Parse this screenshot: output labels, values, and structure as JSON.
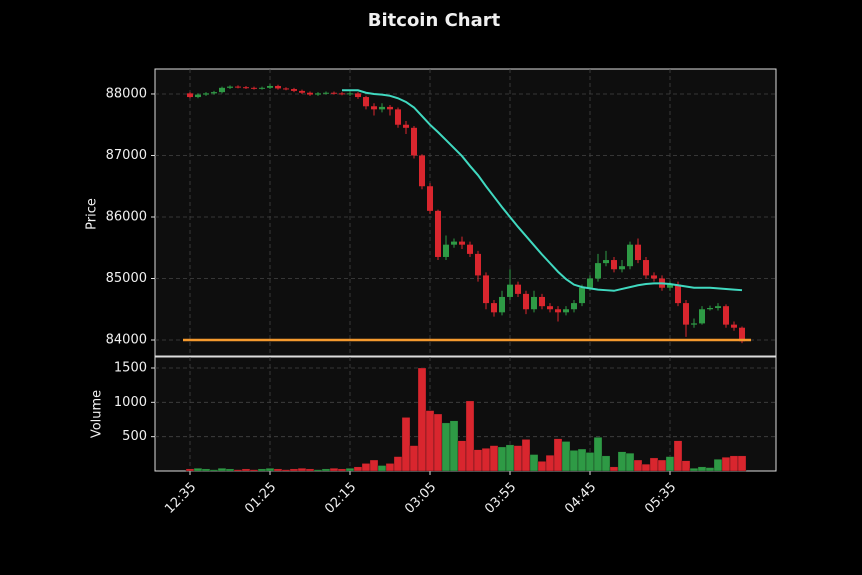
{
  "chart_data": {
    "type": "candlestick",
    "title": "Bitcoin Chart",
    "ylabel": "Price",
    "categories": [
      "12:35",
      null,
      null,
      null,
      null,
      null,
      null,
      null,
      null,
      null,
      "01:25",
      null,
      null,
      null,
      null,
      null,
      null,
      null,
      null,
      null,
      "02:15",
      null,
      null,
      null,
      null,
      null,
      null,
      null,
      null,
      null,
      "03:05",
      null,
      null,
      null,
      null,
      null,
      null,
      null,
      null,
      null,
      "03:55",
      null,
      null,
      null,
      null,
      null,
      null,
      null,
      null,
      null,
      "04:45",
      null,
      null,
      null,
      null,
      null,
      null,
      null,
      null,
      null,
      "05:35",
      null,
      null,
      null,
      null,
      null,
      null,
      null,
      null,
      null
    ],
    "open": [
      88010,
      87950,
      87990,
      88010,
      88030,
      88100,
      88120,
      88110,
      88100,
      88090,
      88100,
      88130,
      88090,
      88080,
      88050,
      88020,
      87990,
      88010,
      88020,
      88010,
      88000,
      88010,
      87950,
      87800,
      87750,
      87790,
      87750,
      87500,
      87450,
      87000,
      86500,
      86100,
      85350,
      85550,
      85600,
      85550,
      85400,
      85050,
      84600,
      84450,
      84700,
      84900,
      84750,
      84500,
      84700,
      84550,
      84500,
      84450,
      84500,
      84600,
      84850,
      85000,
      85250,
      85300,
      85150,
      85200,
      85550,
      85300,
      85050,
      85000,
      84850,
      84900,
      84600,
      84250,
      84270,
      84500,
      84520,
      84550,
      84250,
      84200
    ],
    "high": [
      88030,
      88010,
      88030,
      88050,
      88120,
      88140,
      88140,
      88130,
      88120,
      88120,
      88160,
      88150,
      88110,
      88100,
      88070,
      88040,
      88030,
      88040,
      88040,
      88030,
      88040,
      88030,
      87970,
      87850,
      87850,
      87820,
      87780,
      87560,
      87480,
      87020,
      86550,
      86120,
      85700,
      85650,
      85680,
      85600,
      85450,
      85100,
      84650,
      84800,
      85150,
      84950,
      84800,
      84800,
      84750,
      84600,
      84550,
      84550,
      84650,
      84900,
      85050,
      85400,
      85450,
      85350,
      85300,
      85600,
      85650,
      85350,
      85100,
      85050,
      84950,
      84950,
      84650,
      84350,
      84550,
      84560,
      84600,
      84580,
      84300,
      84220
    ],
    "low": [
      87930,
      87930,
      87970,
      87990,
      88010,
      88080,
      88090,
      88080,
      88070,
      88070,
      88080,
      88070,
      88060,
      88030,
      88000,
      87970,
      87970,
      87990,
      87990,
      87980,
      87970,
      87920,
      87750,
      87650,
      87700,
      87650,
      87450,
      87350,
      86950,
      86450,
      86050,
      85300,
      85300,
      85500,
      85480,
      85350,
      84950,
      84500,
      84380,
      84400,
      84650,
      84700,
      84420,
      84450,
      84500,
      84450,
      84300,
      84400,
      84450,
      84550,
      84800,
      84950,
      85200,
      85100,
      85100,
      85150,
      85250,
      85000,
      84950,
      84800,
      84800,
      84550,
      84050,
      84200,
      84250,
      84480,
      84480,
      84200,
      84150,
      83950
    ],
    "close": [
      87950,
      87990,
      88010,
      88030,
      88100,
      88120,
      88110,
      88100,
      88090,
      88100,
      88130,
      88090,
      88080,
      88050,
      88020,
      87990,
      88010,
      88020,
      88010,
      88000,
      88010,
      87950,
      87800,
      87750,
      87790,
      87750,
      87500,
      87450,
      87000,
      86500,
      86100,
      85350,
      85550,
      85600,
      85550,
      85400,
      85050,
      84600,
      84450,
      84700,
      84900,
      84750,
      84500,
      84700,
      84550,
      84500,
      84450,
      84500,
      84600,
      84850,
      85000,
      85250,
      85300,
      85150,
      85200,
      85550,
      85300,
      85050,
      85000,
      84850,
      84900,
      84600,
      84250,
      84270,
      84500,
      84520,
      84550,
      84250,
      84200,
      83980
    ],
    "up_color": "#2e9a45",
    "down_color": "#d9262e",
    "ylim": [
      83740,
      88406
    ],
    "yticks": [
      84000,
      85000,
      86000,
      87000,
      88000
    ],
    "grid": true,
    "moving_average": {
      "color": "#40d9c0",
      "values": [
        null,
        null,
        null,
        null,
        null,
        null,
        null,
        null,
        null,
        null,
        null,
        null,
        null,
        null,
        null,
        null,
        null,
        null,
        null,
        88060,
        88060,
        88060,
        88020,
        88000,
        87990,
        87970,
        87930,
        87870,
        87780,
        87640,
        87500,
        87380,
        87250,
        87120,
        86990,
        86830,
        86680,
        86500,
        86330,
        86160,
        86000,
        85840,
        85690,
        85540,
        85390,
        85250,
        85110,
        84990,
        84900,
        84860,
        84840,
        84820,
        84810,
        84800,
        84830,
        84860,
        84890,
        84910,
        84920,
        84920,
        84910,
        84890,
        84870,
        84850,
        84850,
        84850,
        84840,
        84830,
        84820,
        84810
      ]
    },
    "hline": {
      "value": 84000,
      "color": "#f59a2e"
    },
    "volume": {
      "ylabel": "Volume",
      "values": [
        30,
        40,
        30,
        20,
        40,
        30,
        20,
        30,
        20,
        30,
        40,
        30,
        20,
        30,
        40,
        30,
        20,
        30,
        40,
        30,
        40,
        60,
        110,
        160,
        80,
        110,
        210,
        780,
        370,
        1500,
        880,
        830,
        700,
        730,
        440,
        1020,
        310,
        330,
        370,
        350,
        380,
        370,
        460,
        240,
        140,
        230,
        470,
        430,
        300,
        320,
        270,
        490,
        220,
        60,
        280,
        260,
        160,
        100,
        190,
        160,
        210,
        440,
        150,
        40,
        60,
        50,
        170,
        200,
        220,
        220
      ],
      "ylim": [
        0,
        1660
      ],
      "yticks": [
        500,
        1000,
        1500
      ]
    }
  }
}
